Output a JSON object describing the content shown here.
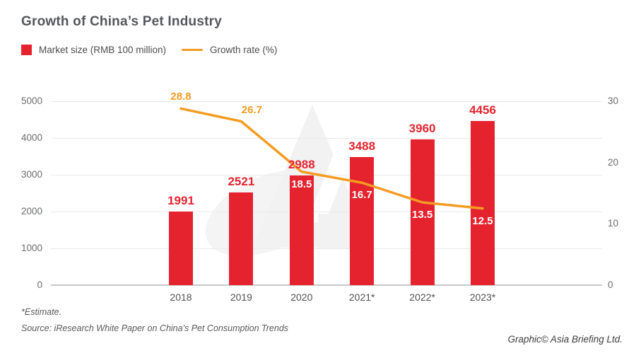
{
  "header": {
    "title": "Growth of China’s Pet Industry"
  },
  "footer": {
    "estimate_note": "*Estimate.",
    "source": "Source: iResearch White Paper on China's Pet Consumption Trends",
    "credit": "Graphic© Asia Briefing Ltd."
  },
  "colors": {
    "bar_red": "#e5232e",
    "line_orange": "#f59b22",
    "white_label": "#ffffff",
    "watermark_gray": "#f2f2f3"
  },
  "chart_data": {
    "type": "bar",
    "title": "Growth of China’s Pet Industry",
    "categories": [
      "2018",
      "2019",
      "2020",
      "2021*",
      "2022*",
      "2023*"
    ],
    "series": [
      {
        "name": "Market size (RMB 100 million)",
        "type": "bar",
        "axis": "left",
        "color": "#e5232e",
        "values": [
          1991,
          2521,
          2988,
          3488,
          3960,
          4456
        ]
      },
      {
        "name": "Growth rate (%)",
        "type": "line",
        "axis": "right",
        "color": "#f59b22",
        "values": [
          28.8,
          26.7,
          18.5,
          16.7,
          13.5,
          12.5
        ]
      }
    ],
    "left_axis": {
      "ticks": [
        0,
        1000,
        2000,
        3000,
        4000,
        5000
      ],
      "min": 0,
      "max": 5000
    },
    "right_axis": {
      "ticks": [
        0,
        10,
        20,
        30
      ],
      "min": 0,
      "max": 30
    },
    "grid": "horizontal",
    "legend_position": "top-left",
    "data_labels": "on"
  }
}
